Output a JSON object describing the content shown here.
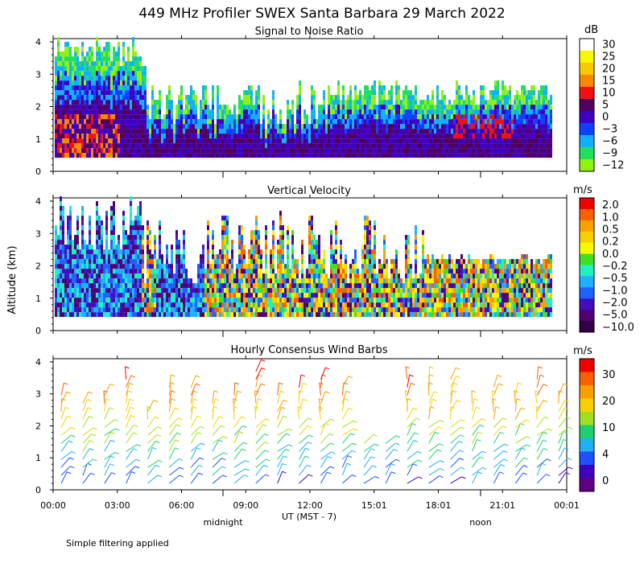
{
  "title": "449 MHz Profiler SWEX Santa Barbara 29 March 2022",
  "ylabel": "Altitude (km)",
  "xlabel": "UT  (MST - 7)",
  "day_labels": [
    "midnight",
    "noon"
  ],
  "footnote": "Simple filtering applied",
  "chart_data": [
    {
      "type": "heatmap",
      "title": "Signal to Noise Ratio",
      "x_ticks": [
        "00:00",
        "03:00",
        "06:00",
        "09:00",
        "12:00",
        "15:01",
        "18:01",
        "21:01",
        "00:01"
      ],
      "y_ticks": [
        "0",
        "1",
        "2",
        "3",
        "4"
      ],
      "ylim": [
        0,
        4.1
      ],
      "unit": "dB",
      "colorbar": {
        "labels": [
          "30",
          "25",
          "20",
          "15",
          "10",
          "5",
          "0",
          "−3",
          "−6",
          "−9",
          "−12"
        ],
        "colors": [
          "#ffffff",
          "#f8f800",
          "#f8c800",
          "#f88800",
          "#f01010",
          "#500060",
          "#4000c0",
          "#1040ff",
          "#10b0ff",
          "#20e060",
          "#90f010"
        ]
      }
    },
    {
      "type": "heatmap",
      "title": "Vertical Velocity",
      "x_ticks": [
        "00:00",
        "03:00",
        "06:00",
        "09:00",
        "12:00",
        "15:01",
        "18:01",
        "21:01",
        "00:01"
      ],
      "y_ticks": [
        "0",
        "1",
        "2",
        "3",
        "4"
      ],
      "ylim": [
        0,
        4.1
      ],
      "unit": "m/s",
      "colorbar": {
        "labels": [
          "2.0",
          "1.0",
          "0.5",
          "0.2",
          "0.0",
          "−0.2",
          "−0.5",
          "−1.0",
          "−2.0",
          "−5.0",
          "−10.0"
        ],
        "colors": [
          "#f00000",
          "#f86000",
          "#f8a000",
          "#f8d000",
          "#f8f800",
          "#40e020",
          "#20f0c0",
          "#20b0ff",
          "#2060ff",
          "#4010c0",
          "#500070",
          "#300040"
        ]
      }
    },
    {
      "type": "wind_barbs",
      "title": "Hourly Consensus Wind Barbs",
      "x_ticks": [
        "00:00",
        "03:00",
        "06:00",
        "09:00",
        "12:00",
        "15:01",
        "18:01",
        "21:01",
        "00:01"
      ],
      "y_ticks": [
        "0",
        "1",
        "2",
        "3",
        "4"
      ],
      "ylim": [
        0,
        4.1
      ],
      "unit": "m/s",
      "colorbar": {
        "labels": [
          "30",
          "20",
          "10",
          "4",
          "0"
        ],
        "colors": [
          "#f00000",
          "#f86000",
          "#f8a000",
          "#f8d000",
          "#a0e020",
          "#20d070",
          "#20b0f0",
          "#2050ff",
          "#4000c0",
          "#600080"
        ]
      }
    }
  ]
}
